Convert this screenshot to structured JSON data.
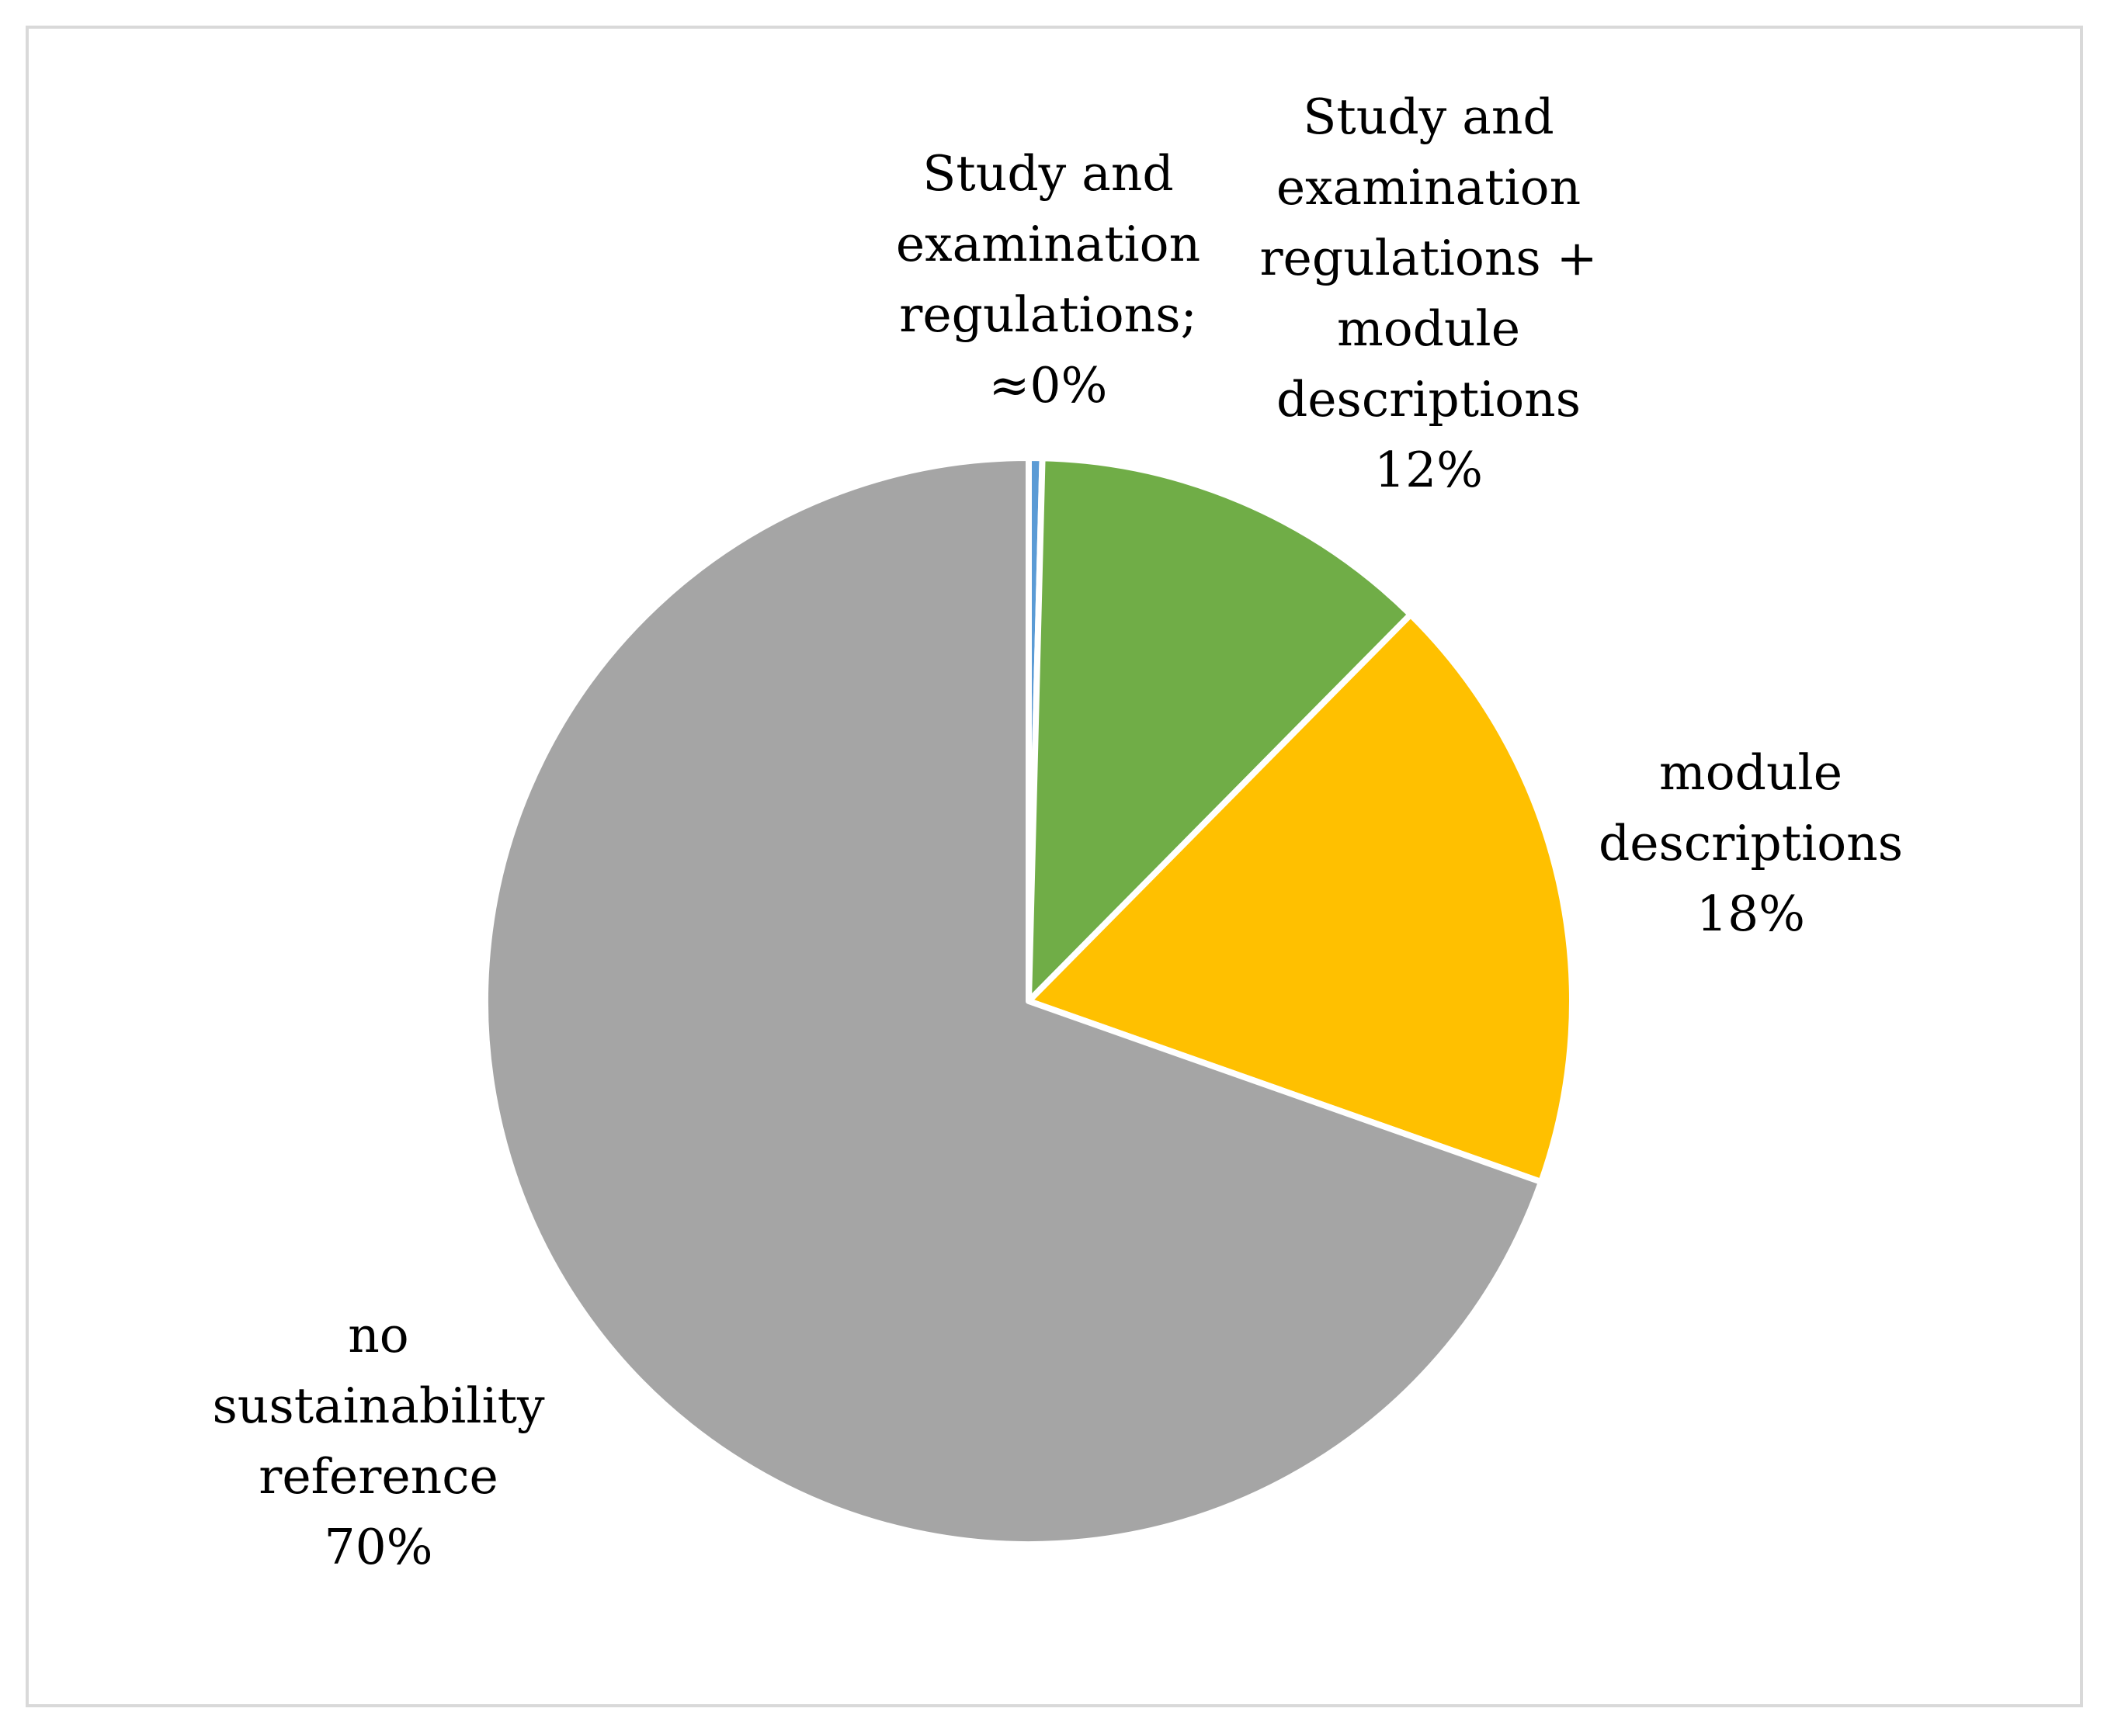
{
  "chart_data": {
    "type": "pie",
    "title": "",
    "start_angle_deg": 0,
    "direction": "clockwise",
    "slices": [
      {
        "name": "Study and examination regulations",
        "value": 0.4,
        "label_lines": [
          "Study and",
          "examination",
          "regulations;",
          "≈0%"
        ],
        "color": "#5b9bd5"
      },
      {
        "name": "Study and examination regulations + module descriptions",
        "value": 12,
        "label_lines": [
          "Study and",
          "examination",
          "regulations +",
          "module",
          "descriptions",
          "12%"
        ],
        "color": "#70ad47"
      },
      {
        "name": "module descriptions",
        "value": 18,
        "label_lines": [
          "module",
          "descriptions",
          "18%"
        ],
        "color": "#ffc000"
      },
      {
        "name": "no sustainability reference",
        "value": 69.6,
        "label_lines": [
          "no",
          "sustainability",
          "reference",
          "70%"
        ],
        "color": "#a5a5a5"
      }
    ]
  }
}
